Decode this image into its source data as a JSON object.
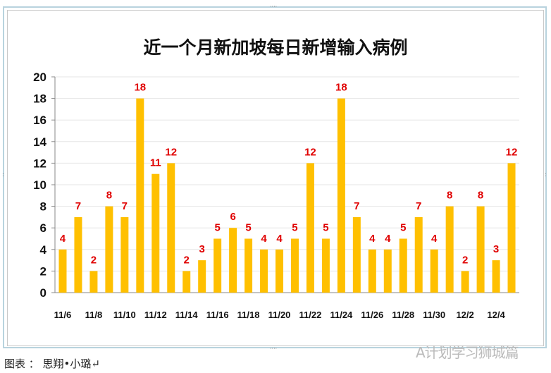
{
  "chart_data": {
    "type": "bar",
    "title": "近一个月新加坡每日新增输入病例",
    "categories": [
      "11/6",
      "11/7",
      "11/8",
      "11/9",
      "11/10",
      "11/11",
      "11/12",
      "11/13",
      "11/14",
      "11/15",
      "11/16",
      "11/17",
      "11/18",
      "11/19",
      "11/20",
      "11/21",
      "11/22",
      "11/23",
      "11/24",
      "11/25",
      "11/26",
      "11/27",
      "11/28",
      "11/29",
      "11/30",
      "12/1",
      "12/2",
      "12/3",
      "12/4",
      "12/5"
    ],
    "tick_labels": [
      "11/6",
      "11/8",
      "11/10",
      "11/12",
      "11/14",
      "11/16",
      "11/18",
      "11/20",
      "11/22",
      "11/24",
      "11/26",
      "11/28",
      "11/30",
      "12/2",
      "12/4"
    ],
    "values": [
      4,
      7,
      2,
      8,
      7,
      18,
      11,
      12,
      2,
      3,
      5,
      6,
      5,
      4,
      4,
      5,
      12,
      5,
      18,
      7,
      4,
      4,
      5,
      7,
      4,
      8,
      2,
      8,
      3,
      12
    ],
    "ylim": [
      0,
      20
    ],
    "yticks": [
      0,
      2,
      4,
      6,
      8,
      10,
      12,
      14,
      16,
      18,
      20
    ],
    "grid": true,
    "bar_color": "#ffc000",
    "label_color": "#e00000"
  },
  "caption": "图表 ： 思翔•小璐↵",
  "watermark": "A计划学习狮城篇"
}
